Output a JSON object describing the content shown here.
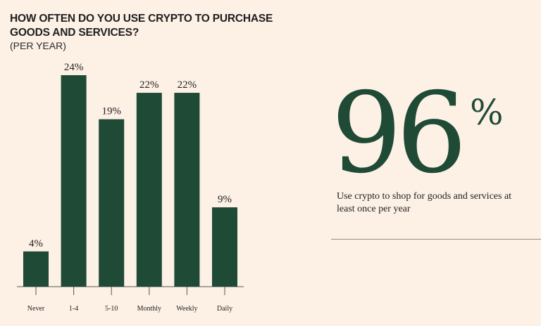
{
  "chart_data": {
    "type": "bar",
    "title": "HOW OFTEN DO YOU USE CRYPTO TO PURCHASE GOODS AND SERVICES?",
    "subtitle": "(PER YEAR)",
    "categories": [
      "Never",
      "1-4",
      "5-10",
      "Monthly",
      "Weekly",
      "Daily"
    ],
    "values": [
      4,
      24,
      19,
      22,
      22,
      9
    ],
    "data_labels": [
      "4%",
      "24%",
      "19%",
      "22%",
      "22%",
      "9%"
    ],
    "ylim": [
      0,
      24
    ],
    "xlabel": "",
    "ylabel": "",
    "grid": false,
    "bar_color": "#1e4a36"
  },
  "highlight": {
    "number": "96",
    "suffix": "%",
    "caption": "Use crypto to shop for goods and services at least once per year"
  },
  "colors": {
    "background": "#fdf1e6",
    "accent": "#1e4a36",
    "divider": "#9c8e82"
  }
}
